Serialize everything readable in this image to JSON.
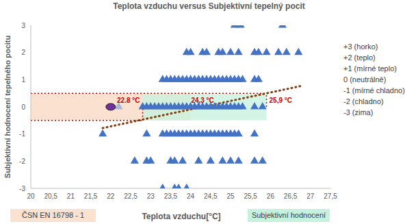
{
  "chart_data": {
    "type": "scatter",
    "title": "Teplota vzduchu versus Subjektivní tepelný pocit",
    "x_label": "Teplota vzduchu[°C]",
    "y_label": "Subjektivní hodnocení tepelného pocitu",
    "xlim": [
      20,
      27.5
    ],
    "xticks": [
      20,
      {
        "value": 20.5,
        "label": "20,5"
      },
      21,
      {
        "value": 21.5,
        "label": "21,5"
      },
      22,
      {
        "value": 22.5,
        "label": "22,5"
      },
      23,
      {
        "value": 23.5,
        "label": "23,5"
      },
      24,
      {
        "value": 24.5,
        "label": "24,5"
      },
      25,
      {
        "value": 25.5,
        "label": "25,5"
      },
      26,
      {
        "value": 26.5,
        "label": "26,5"
      },
      27,
      {
        "value": 27.5,
        "label": "27,5"
      }
    ],
    "ylim": [
      -3,
      3
    ],
    "yticks": [
      -3,
      -2,
      -1,
      0,
      1,
      2,
      3
    ],
    "grid": false,
    "series": [
      {
        "color": "#4472c4",
        "marker": "triangle",
        "x": [
          25.1,
          25.25,
          26.3,
          23.9,
          24.0,
          24.3,
          24.4,
          24.7,
          24.8,
          25.0,
          25.2,
          25.6,
          25.7,
          25.9,
          26.2,
          26.4,
          26.7,
          23.3,
          23.4,
          23.5,
          23.6,
          23.7,
          23.8,
          23.9,
          24.0,
          24.1,
          24.2,
          24.3,
          24.4,
          24.5,
          24.6,
          24.7,
          24.8,
          24.9,
          25.0,
          25.1,
          25.2,
          25.3,
          25.6,
          25.7,
          22.8,
          22.9,
          23.0,
          23.1,
          23.2,
          23.3,
          23.4,
          23.5,
          23.6,
          23.7,
          23.8,
          23.9,
          24.0,
          24.1,
          24.2,
          24.3,
          24.4,
          24.5,
          24.6,
          24.7,
          24.8,
          24.9,
          25.0,
          25.1,
          25.2,
          25.3,
          25.6,
          25.8,
          21.8,
          22.9,
          23.3,
          23.4,
          23.5,
          23.6,
          23.7,
          23.8,
          23.9,
          24.0,
          24.1,
          24.2,
          24.3,
          24.4,
          24.5,
          24.6,
          24.7,
          24.8,
          24.9,
          25.0,
          25.1,
          25.2,
          25.6,
          22.6,
          22.9,
          23.0,
          23.5,
          23.6,
          23.8,
          24.2,
          24.5,
          24.8,
          25.0,
          25.2,
          25.6,
          25.8,
          23.3,
          23.6,
          23.7,
          23.9
        ],
        "values": [
          3,
          3,
          3,
          2,
          2,
          2,
          2,
          2,
          2,
          2,
          2,
          2,
          2,
          2,
          2,
          2,
          2,
          1,
          1,
          1,
          1,
          1,
          1,
          1,
          1,
          1,
          1,
          1,
          1,
          1,
          1,
          1,
          1,
          1,
          1,
          1,
          1,
          1,
          1,
          1,
          0,
          0,
          0,
          0,
          0,
          0,
          0,
          0,
          0,
          0,
          0,
          0,
          0,
          0,
          0,
          0,
          0,
          0,
          0,
          0,
          0,
          0,
          0,
          0,
          0,
          0,
          0,
          0,
          -1,
          -1,
          -1,
          -1,
          -1,
          -1,
          -1,
          -1,
          -1,
          -1,
          -1,
          -1,
          -1,
          -1,
          -1,
          -1,
          -1,
          -1,
          -1,
          -1,
          -1,
          -1,
          -1,
          -2,
          -2,
          -2,
          -2,
          -2,
          -2,
          -2,
          -2,
          -2,
          -2,
          -2,
          -2,
          -2,
          -3,
          -3,
          -3,
          -3
        ]
      },
      {
        "color": "#a9b8d6",
        "marker": "triangle",
        "x": [
          22.2
        ],
        "values": [
          0
        ]
      },
      {
        "color": "#7030a0",
        "marker": "circle",
        "x": [
          22
        ],
        "values": [
          0
        ]
      }
    ],
    "bands": [
      {
        "label": "ČSN EN 16798 - 1",
        "x": [
          20,
          24
        ],
        "values": [
          -0.5,
          0.5
        ],
        "color": "#fbe2d0"
      },
      {
        "label": "Subjektivní hodnocení",
        "x": [
          22.8,
          25.9
        ],
        "values": [
          -0.5,
          0.5
        ],
        "color": "#c5f2de"
      }
    ],
    "reference_lines": {
      "color": "#c00000",
      "line_style": "dotted",
      "segments": [
        {
          "x": [
            20,
            25.9
          ],
          "values": [
            0.5,
            0.5
          ]
        },
        {
          "x": [
            20,
            22.8
          ],
          "values": [
            -0.5,
            -0.5
          ]
        },
        {
          "x": [
            22.8,
            22.8
          ],
          "values": [
            -0.5,
            0
          ]
        },
        {
          "x": [
            25.9,
            25.9
          ],
          "values": [
            0,
            0.5
          ]
        }
      ]
    },
    "trendline": {
      "x": [
        21.8,
        26.8
      ],
      "values": [
        -0.78,
        0.78
      ],
      "color": "#843c0c",
      "line_style": "dotted"
    },
    "annotations": {
      "color": "#c00000",
      "items": [
        {
          "text": "22.8 °C",
          "x": 22.8
        },
        {
          "text": "24,3 °C",
          "x": 24.3
        },
        {
          "text": "25,9 °C",
          "x": 25.9
        }
      ]
    },
    "scale_labels": [
      "+3 (horko)",
      "+2 (teplo)",
      "+1 (mírné teplo)",
      "0 (neutrálně)",
      "-1 (mírné chladno)",
      "-2 (chladno)",
      "-3 (zima)"
    ]
  }
}
